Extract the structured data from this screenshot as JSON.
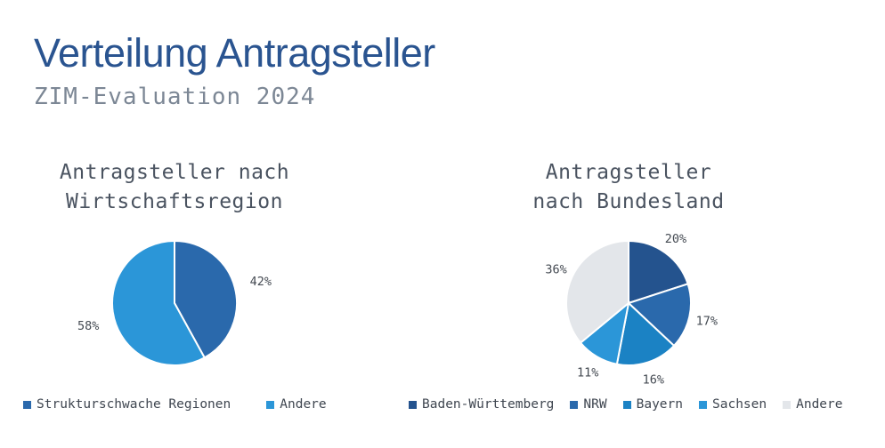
{
  "header": {
    "title": "Verteilung Antragsteller",
    "subtitle": "ZIM-Evaluation 2024"
  },
  "chart_data": [
    {
      "type": "pie",
      "title_lines": [
        "Antragsteller nach",
        "Wirtschaftsregion"
      ],
      "categories": [
        "Strukturschwache Regionen",
        "Andere"
      ],
      "values": [
        42,
        58
      ],
      "labels": [
        "42%",
        "58%"
      ],
      "colors": [
        "#2a69ac",
        "#2b96d8"
      ],
      "legend": "bottom"
    },
    {
      "type": "pie",
      "title_lines": [
        "Antragsteller",
        "nach Bundesland"
      ],
      "categories": [
        "Baden-Württemberg",
        "NRW",
        "Bayern",
        "Sachsen",
        "Andere"
      ],
      "values": [
        20,
        17,
        16,
        11,
        36
      ],
      "labels": [
        "20%",
        "17%",
        "16%",
        "11%",
        "36%"
      ],
      "colors": [
        "#24538e",
        "#2a69ac",
        "#1b82c4",
        "#2b96d8",
        "#e3e6ea"
      ],
      "legend": "bottom"
    }
  ]
}
